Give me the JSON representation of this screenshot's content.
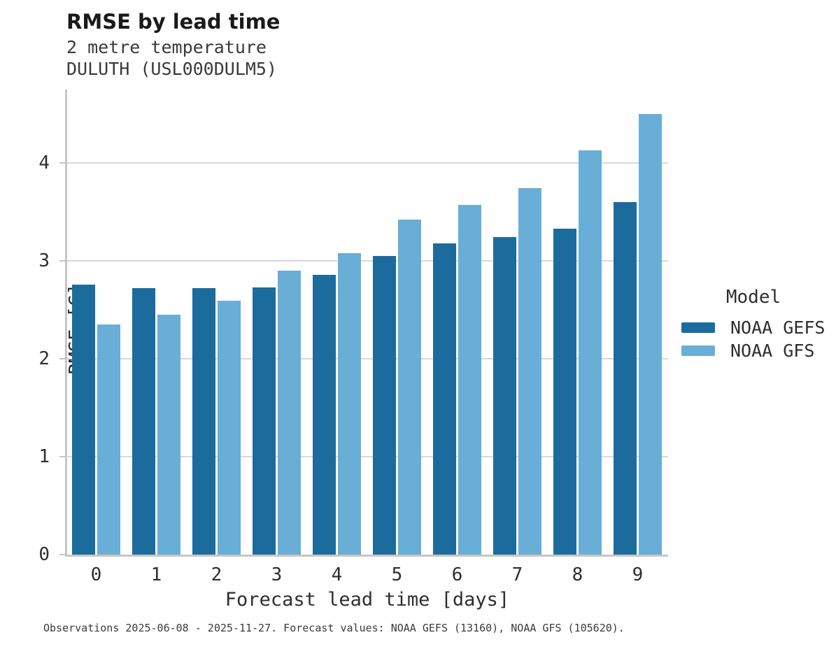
{
  "chart_data": {
    "type": "bar",
    "title": "RMSE by lead time",
    "subtitle": [
      "2 metre temperature",
      "DULUTH (USL000DULM5)"
    ],
    "categories": [
      "0",
      "1",
      "2",
      "3",
      "4",
      "5",
      "6",
      "7",
      "8",
      "9"
    ],
    "series": [
      {
        "name": "NOAA GEFS",
        "color": "#1b6c9d",
        "values": [
          2.76,
          2.72,
          2.72,
          2.73,
          2.86,
          3.05,
          3.18,
          3.24,
          3.33,
          3.6
        ]
      },
      {
        "name": "NOAA GFS",
        "color": "#69aed6",
        "values": [
          2.35,
          2.45,
          2.59,
          2.9,
          3.08,
          3.42,
          3.57,
          3.74,
          4.13,
          4.5
        ]
      }
    ],
    "xlabel": "Forecast lead time [days]",
    "ylabel": "RMSE [C]",
    "ylim": [
      0,
      4.75
    ],
    "yticks": [
      0,
      1,
      2,
      3,
      4
    ],
    "grid": "horizontal",
    "legend_title": "Model",
    "legend_position": "right"
  },
  "footnote": "Observations 2025-06-08 - 2025-11-27. Forecast values: NOAA GEFS (13160), NOAA GFS (105620)."
}
